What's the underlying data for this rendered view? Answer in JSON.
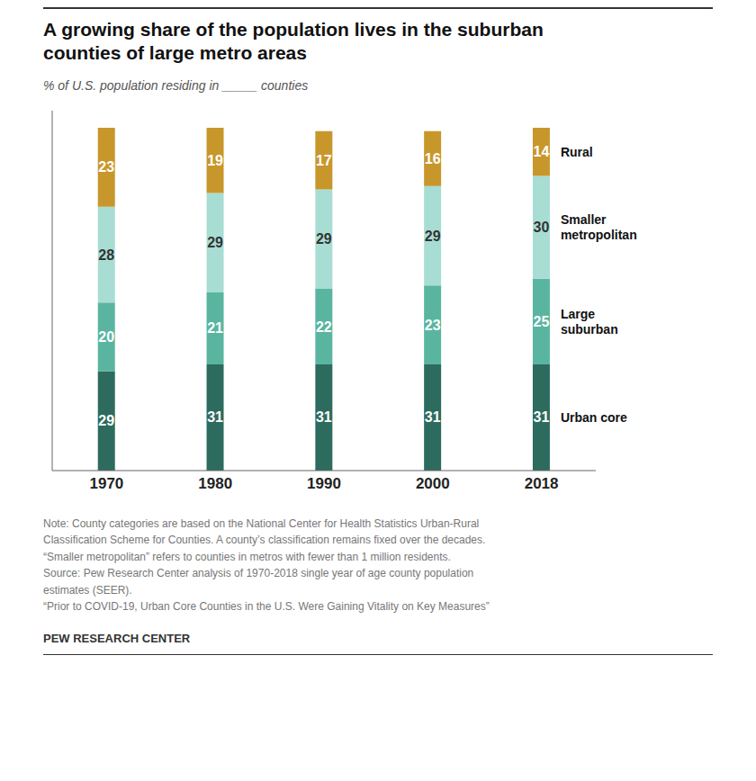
{
  "chart_data": {
    "type": "bar",
    "title": "A growing share of the population lives in the suburban\ncounties of large metro areas",
    "subtitle": "% of U.S. population residing in _____ counties",
    "annotations": [
      "Note: County categories are based on the National Center for Health Statistics Urban-Rural\nClassification Scheme for Counties. A county’s classification remains fixed over the decades.\n“Smaller metropolitan” refers to counties in metros with fewer than 1 million residents.\nSource: Pew Research Center analysis of 1970-2018 single year of age county population\nestimates (SEER).\n“Prior to COVID-19, Urban Core Counties in the U.S. Were Gaining Vitality on Key Measures”",
      "PEW RESEARCH CENTER"
    ],
    "categories": [
      "1970",
      "1980",
      "1990",
      "2000",
      "2018"
    ],
    "series": [
      {
        "name": "Urban core",
        "color": "#2d6b5e",
        "values": [
          29,
          31,
          31,
          31,
          31
        ]
      },
      {
        "name": "Large\nsuburban",
        "color": "#5ab5a0",
        "values": [
          20,
          21,
          22,
          23,
          25
        ]
      },
      {
        "name": "Smaller\nmetropolitan",
        "color": "#a8ddd4",
        "values": [
          28,
          29,
          29,
          29,
          30
        ]
      },
      {
        "name": "Rural",
        "color": "#c8972b",
        "values": [
          23,
          19,
          17,
          16,
          14
        ]
      }
    ],
    "stacked": true,
    "data_labels": true,
    "ylim": [
      0,
      105
    ],
    "tick_labels": "x",
    "grid": false,
    "legend": "right"
  }
}
